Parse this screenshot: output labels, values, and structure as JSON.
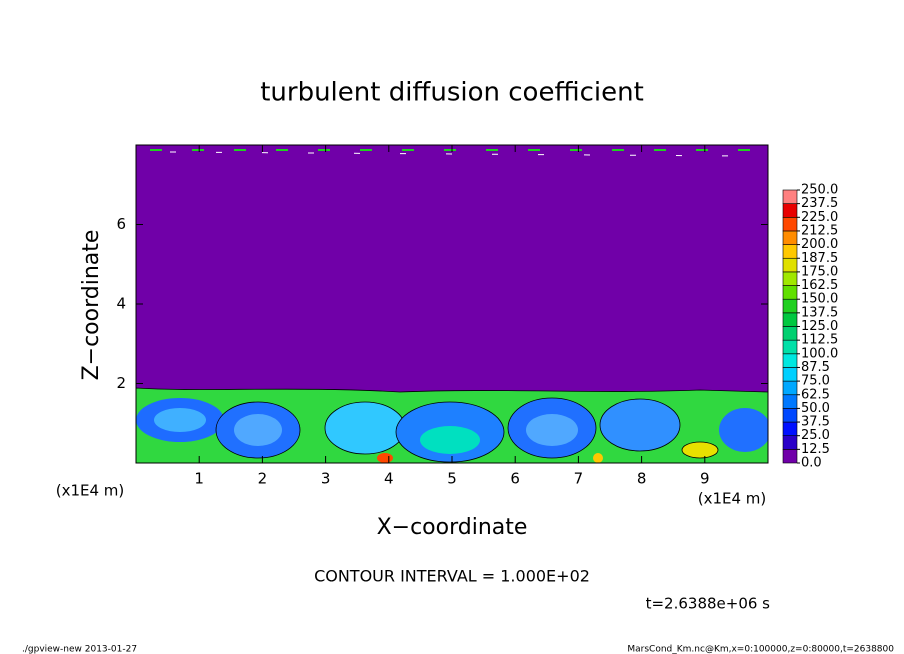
{
  "chart_data": {
    "type": "contour",
    "title": "turbulent diffusion coefficient",
    "x_label": "X−coordinate",
    "y_label": "Z−coordinate",
    "x_unit": "(x1E4 m)",
    "y_unit": "(x1E4 m)",
    "xlim": [
      0,
      10
    ],
    "ylim": [
      0,
      8
    ],
    "xticks": [
      1,
      2,
      3,
      4,
      5,
      6,
      7,
      8,
      9
    ],
    "yticks": [
      2,
      4,
      6
    ],
    "colorbar": {
      "levels": [
        {
          "value": 0,
          "label": "0.0"
        },
        {
          "value": 12.5,
          "label": "12.5"
        },
        {
          "value": 25,
          "label": "25.0"
        },
        {
          "value": 37.5,
          "label": "37.5"
        },
        {
          "value": 50,
          "label": "50.0"
        },
        {
          "value": 62.5,
          "label": "62.5"
        },
        {
          "value": 75,
          "label": "75.0"
        },
        {
          "value": 87.5,
          "label": "87.5"
        },
        {
          "value": 100,
          "label": "100.0"
        },
        {
          "value": 112.5,
          "label": "112.5"
        },
        {
          "value": 125,
          "label": "125.0"
        },
        {
          "value": 137.5,
          "label": "137.5"
        },
        {
          "value": 150,
          "label": "150.0"
        },
        {
          "value": 162.5,
          "label": "162.5"
        },
        {
          "value": 175,
          "label": "175.0"
        },
        {
          "value": 187.5,
          "label": "187.5"
        },
        {
          "value": 200,
          "label": "200.0"
        },
        {
          "value": 212.5,
          "label": "212.5"
        },
        {
          "value": 225,
          "label": "225.0"
        },
        {
          "value": 237.5,
          "label": "237.5"
        },
        {
          "value": 250,
          "label": "250.0"
        }
      ],
      "colors": [
        "#7000a8",
        "#2a00c8",
        "#0010ff",
        "#0048ff",
        "#0078ff",
        "#00a8ff",
        "#00d0ff",
        "#00e8e0",
        "#00e0a8",
        "#00d070",
        "#00c840",
        "#20d020",
        "#60e000",
        "#a0e800",
        "#e0e000",
        "#ffc800",
        "#ff8c00",
        "#ff4800",
        "#e80000",
        "#ff8080"
      ]
    },
    "contour_interval": "CONTOUR INTERVAL = 1.000E+02",
    "time": "t=2.6388e+06 s",
    "footer_left": "./gpview-new  2013-01-27",
    "footer_right": "MarsCond_Km.nc@Km,x=0:100000,z=0:80000,t=2638800"
  }
}
